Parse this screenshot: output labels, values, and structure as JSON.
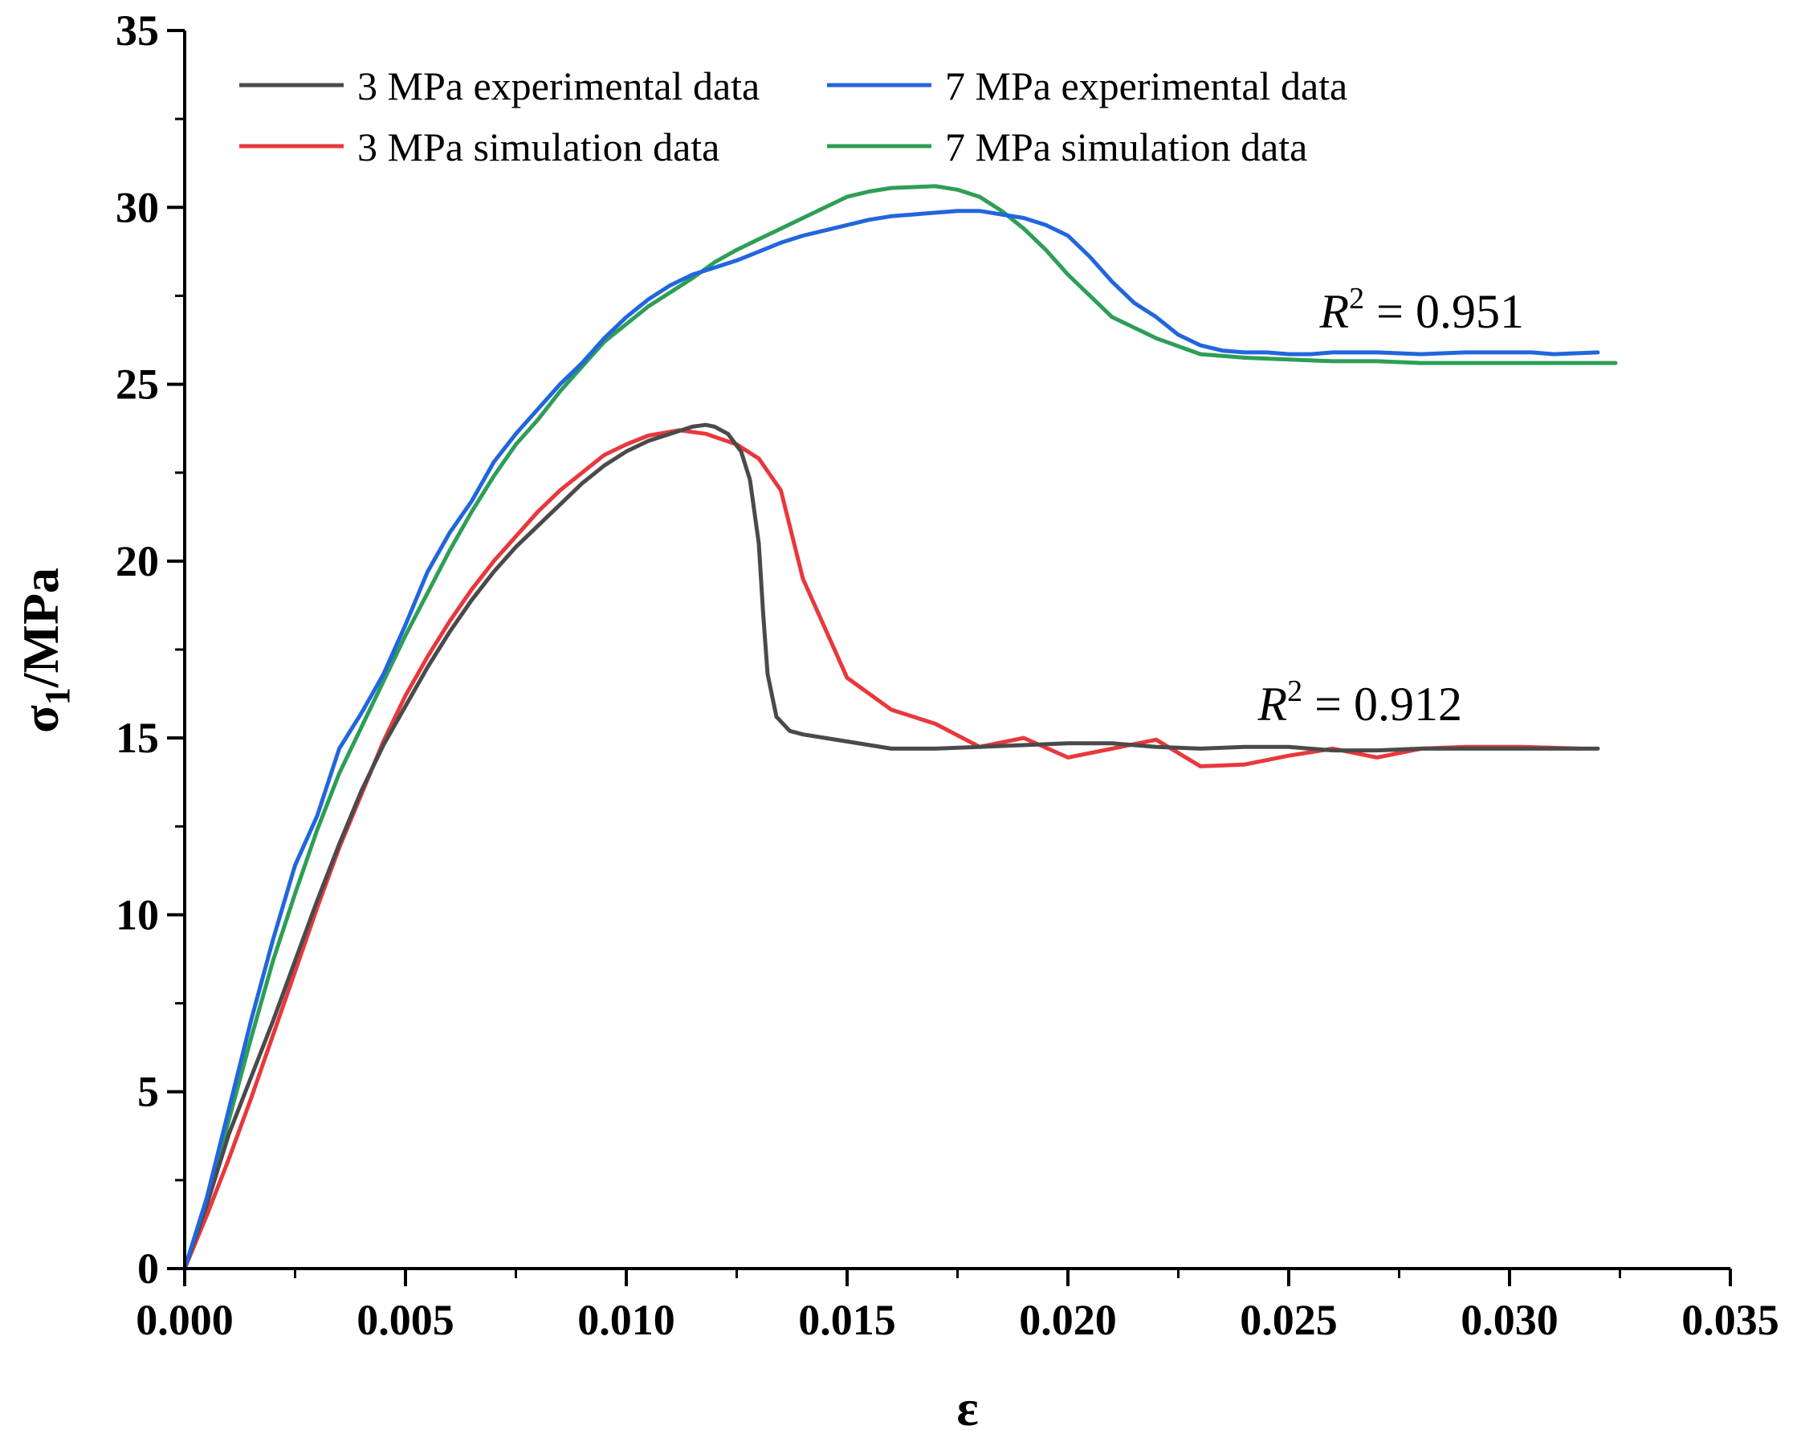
{
  "chart_data": {
    "type": "line",
    "xlabel": "ε",
    "ylabel_main": "σ",
    "ylabel_sub": "1",
    "ylabel_rest": "/MPa",
    "xlim": [
      0,
      0.035
    ],
    "ylim": [
      0,
      35
    ],
    "x_ticks": [
      0,
      0.005,
      0.01,
      0.015,
      0.02,
      0.025,
      0.03,
      0.035
    ],
    "x_tick_labels": [
      "0.000",
      "0.005",
      "0.010",
      "0.015",
      "0.020",
      "0.025",
      "0.030",
      "0.035"
    ],
    "y_ticks": [
      0,
      5,
      10,
      15,
      20,
      25,
      30,
      35
    ],
    "y_tick_labels": [
      "0",
      "5",
      "10",
      "15",
      "20",
      "25",
      "30",
      "35"
    ],
    "legend_position": "top-left",
    "series": [
      {
        "name": "3 MPa experimental data",
        "color": "#4a4a4a",
        "points": [
          [
            0,
            0
          ],
          [
            0.0005,
            1.8
          ],
          [
            0.001,
            3.8
          ],
          [
            0.0015,
            5.4
          ],
          [
            0.002,
            7.0
          ],
          [
            0.0025,
            8.7
          ],
          [
            0.003,
            10.4
          ],
          [
            0.0035,
            12.0
          ],
          [
            0.004,
            13.5
          ],
          [
            0.0045,
            14.8
          ],
          [
            0.005,
            15.9
          ],
          [
            0.0055,
            17.0
          ],
          [
            0.006,
            18.0
          ],
          [
            0.0065,
            18.9
          ],
          [
            0.007,
            19.7
          ],
          [
            0.0075,
            20.4
          ],
          [
            0.008,
            21.0
          ],
          [
            0.0085,
            21.6
          ],
          [
            0.009,
            22.2
          ],
          [
            0.0095,
            22.7
          ],
          [
            0.01,
            23.1
          ],
          [
            0.0105,
            23.4
          ],
          [
            0.011,
            23.6
          ],
          [
            0.0115,
            23.8
          ],
          [
            0.0118,
            23.85
          ],
          [
            0.012,
            23.8
          ],
          [
            0.0123,
            23.6
          ],
          [
            0.0126,
            23.1
          ],
          [
            0.0128,
            22.3
          ],
          [
            0.013,
            20.5
          ],
          [
            0.0131,
            18.5
          ],
          [
            0.0132,
            16.8
          ],
          [
            0.0134,
            15.6
          ],
          [
            0.0137,
            15.2
          ],
          [
            0.014,
            15.1
          ],
          [
            0.0145,
            15.0
          ],
          [
            0.015,
            14.9
          ],
          [
            0.016,
            14.7
          ],
          [
            0.017,
            14.7
          ],
          [
            0.018,
            14.75
          ],
          [
            0.019,
            14.8
          ],
          [
            0.02,
            14.85
          ],
          [
            0.021,
            14.85
          ],
          [
            0.022,
            14.75
          ],
          [
            0.023,
            14.7
          ],
          [
            0.024,
            14.75
          ],
          [
            0.025,
            14.75
          ],
          [
            0.026,
            14.65
          ],
          [
            0.027,
            14.65
          ],
          [
            0.028,
            14.7
          ],
          [
            0.029,
            14.7
          ],
          [
            0.03,
            14.7
          ],
          [
            0.031,
            14.7
          ],
          [
            0.032,
            14.7
          ]
        ]
      },
      {
        "name": "3 MPa simulation data",
        "color": "#e8383d",
        "points": [
          [
            0,
            0
          ],
          [
            0.0005,
            1.5
          ],
          [
            0.001,
            3.1
          ],
          [
            0.0015,
            4.8
          ],
          [
            0.002,
            6.6
          ],
          [
            0.0025,
            8.4
          ],
          [
            0.003,
            10.2
          ],
          [
            0.0035,
            11.9
          ],
          [
            0.004,
            13.4
          ],
          [
            0.0045,
            14.9
          ],
          [
            0.005,
            16.2
          ],
          [
            0.0055,
            17.3
          ],
          [
            0.006,
            18.3
          ],
          [
            0.0065,
            19.2
          ],
          [
            0.007,
            20.0
          ],
          [
            0.0075,
            20.7
          ],
          [
            0.008,
            21.4
          ],
          [
            0.0085,
            22.0
          ],
          [
            0.009,
            22.5
          ],
          [
            0.0095,
            23.0
          ],
          [
            0.01,
            23.3
          ],
          [
            0.0105,
            23.55
          ],
          [
            0.0112,
            23.7
          ],
          [
            0.0118,
            23.6
          ],
          [
            0.0125,
            23.3
          ],
          [
            0.013,
            22.9
          ],
          [
            0.0135,
            22.0
          ],
          [
            0.014,
            19.5
          ],
          [
            0.015,
            16.7
          ],
          [
            0.016,
            15.8
          ],
          [
            0.017,
            15.4
          ],
          [
            0.018,
            14.75
          ],
          [
            0.019,
            15.0
          ],
          [
            0.02,
            14.45
          ],
          [
            0.021,
            14.7
          ],
          [
            0.022,
            14.95
          ],
          [
            0.023,
            14.2
          ],
          [
            0.024,
            14.25
          ],
          [
            0.025,
            14.5
          ],
          [
            0.026,
            14.7
          ],
          [
            0.027,
            14.45
          ],
          [
            0.028,
            14.7
          ],
          [
            0.029,
            14.75
          ],
          [
            0.0303,
            14.75
          ],
          [
            0.0316,
            14.7
          ]
        ]
      },
      {
        "name": "7 MPa experimental data",
        "color": "#2266dd",
        "points": [
          [
            0,
            0
          ],
          [
            0.0005,
            2.0
          ],
          [
            0.001,
            4.5
          ],
          [
            0.0015,
            7.0
          ],
          [
            0.002,
            9.3
          ],
          [
            0.0025,
            11.4
          ],
          [
            0.003,
            12.8
          ],
          [
            0.0035,
            14.7
          ],
          [
            0.004,
            15.7
          ],
          [
            0.0045,
            16.8
          ],
          [
            0.005,
            18.2
          ],
          [
            0.0055,
            19.7
          ],
          [
            0.006,
            20.8
          ],
          [
            0.0065,
            21.7
          ],
          [
            0.007,
            22.8
          ],
          [
            0.0075,
            23.6
          ],
          [
            0.008,
            24.3
          ],
          [
            0.0085,
            25.0
          ],
          [
            0.009,
            25.6
          ],
          [
            0.0095,
            26.3
          ],
          [
            0.01,
            26.9
          ],
          [
            0.0105,
            27.4
          ],
          [
            0.011,
            27.8
          ],
          [
            0.0115,
            28.1
          ],
          [
            0.012,
            28.3
          ],
          [
            0.0125,
            28.5
          ],
          [
            0.013,
            28.75
          ],
          [
            0.0135,
            29.0
          ],
          [
            0.014,
            29.2
          ],
          [
            0.0145,
            29.35
          ],
          [
            0.015,
            29.5
          ],
          [
            0.0155,
            29.65
          ],
          [
            0.016,
            29.75
          ],
          [
            0.0165,
            29.8
          ],
          [
            0.017,
            29.85
          ],
          [
            0.0175,
            29.9
          ],
          [
            0.018,
            29.9
          ],
          [
            0.0185,
            29.8
          ],
          [
            0.019,
            29.7
          ],
          [
            0.0195,
            29.5
          ],
          [
            0.02,
            29.2
          ],
          [
            0.0205,
            28.6
          ],
          [
            0.021,
            27.9
          ],
          [
            0.0215,
            27.3
          ],
          [
            0.022,
            26.9
          ],
          [
            0.0225,
            26.4
          ],
          [
            0.023,
            26.1
          ],
          [
            0.0235,
            25.95
          ],
          [
            0.024,
            25.9
          ],
          [
            0.0245,
            25.9
          ],
          [
            0.025,
            25.85
          ],
          [
            0.0255,
            25.85
          ],
          [
            0.026,
            25.9
          ],
          [
            0.027,
            25.9
          ],
          [
            0.028,
            25.85
          ],
          [
            0.029,
            25.9
          ],
          [
            0.03,
            25.9
          ],
          [
            0.0305,
            25.9
          ],
          [
            0.031,
            25.85
          ],
          [
            0.032,
            25.9
          ]
        ]
      },
      {
        "name": "7 MPa simulation data",
        "color": "#2e9e57",
        "points": [
          [
            0,
            0
          ],
          [
            0.0005,
            1.9
          ],
          [
            0.001,
            4.2
          ],
          [
            0.0015,
            6.5
          ],
          [
            0.002,
            8.7
          ],
          [
            0.0025,
            10.6
          ],
          [
            0.003,
            12.4
          ],
          [
            0.0035,
            14.0
          ],
          [
            0.004,
            15.3
          ],
          [
            0.0045,
            16.6
          ],
          [
            0.005,
            17.9
          ],
          [
            0.0055,
            19.1
          ],
          [
            0.006,
            20.3
          ],
          [
            0.0065,
            21.4
          ],
          [
            0.007,
            22.4
          ],
          [
            0.0075,
            23.3
          ],
          [
            0.008,
            24.0
          ],
          [
            0.0085,
            24.8
          ],
          [
            0.009,
            25.5
          ],
          [
            0.0095,
            26.2
          ],
          [
            0.01,
            26.7
          ],
          [
            0.0105,
            27.2
          ],
          [
            0.011,
            27.6
          ],
          [
            0.0115,
            28.0
          ],
          [
            0.012,
            28.45
          ],
          [
            0.0125,
            28.8
          ],
          [
            0.013,
            29.1
          ],
          [
            0.0135,
            29.4
          ],
          [
            0.014,
            29.7
          ],
          [
            0.0145,
            30.0
          ],
          [
            0.015,
            30.3
          ],
          [
            0.0155,
            30.45
          ],
          [
            0.016,
            30.55
          ],
          [
            0.017,
            30.6
          ],
          [
            0.0175,
            30.5
          ],
          [
            0.018,
            30.3
          ],
          [
            0.0185,
            29.9
          ],
          [
            0.019,
            29.4
          ],
          [
            0.0195,
            28.8
          ],
          [
            0.02,
            28.1
          ],
          [
            0.0205,
            27.5
          ],
          [
            0.021,
            26.9
          ],
          [
            0.022,
            26.3
          ],
          [
            0.023,
            25.85
          ],
          [
            0.024,
            25.75
          ],
          [
            0.025,
            25.7
          ],
          [
            0.026,
            25.65
          ],
          [
            0.027,
            25.65
          ],
          [
            0.028,
            25.6
          ],
          [
            0.029,
            25.6
          ],
          [
            0.03,
            25.6
          ],
          [
            0.031,
            25.6
          ],
          [
            0.0324,
            25.6
          ]
        ]
      }
    ],
    "annotations": [
      {
        "var": "R",
        "exp": "2",
        "rest": " = 0.951",
        "x": 0.0257,
        "y": 26.6
      },
      {
        "var": "R",
        "exp": "2",
        "rest": " = 0.912",
        "x": 0.0243,
        "y": 15.5
      }
    ]
  }
}
